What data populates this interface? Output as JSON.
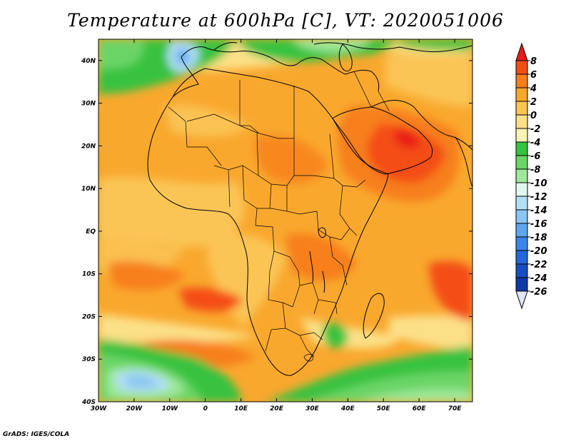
{
  "title": "Temperature at 600hPa [C], VT: 2020051006",
  "credit": "GrADS: IGES/COLA",
  "map": {
    "lon_ticks": [
      "30W",
      "20W",
      "10W",
      "0",
      "10E",
      "20E",
      "30E",
      "40E",
      "50E",
      "60E",
      "70E"
    ],
    "lat_ticks": [
      "40N",
      "30N",
      "20N",
      "10N",
      "EQ",
      "10S",
      "20S",
      "30S",
      "40S"
    ],
    "lon_range": [
      -30,
      75
    ],
    "lat_range": [
      -40,
      45
    ]
  },
  "colorbar": {
    "levels": [
      "8",
      "6",
      "4",
      "2",
      "0",
      "-2",
      "-4",
      "-6",
      "-8",
      "-10",
      "-12",
      "-14",
      "-16",
      "-18",
      "-20",
      "-22",
      "-24",
      "-26"
    ],
    "colors": [
      "#e81a14",
      "#f44d14",
      "#f77f1c",
      "#f9a82e",
      "#fbc557",
      "#fce088",
      "#f8f3b2",
      "#37c23f",
      "#6bd566",
      "#9fe89a",
      "#dff8f0",
      "#b2dff6",
      "#8bc6f2",
      "#5ca7ee",
      "#3b85e8",
      "#2568d9",
      "#174ebf",
      "#0e3aa5",
      "#071f75",
      "#e0e6fa"
    ]
  }
}
